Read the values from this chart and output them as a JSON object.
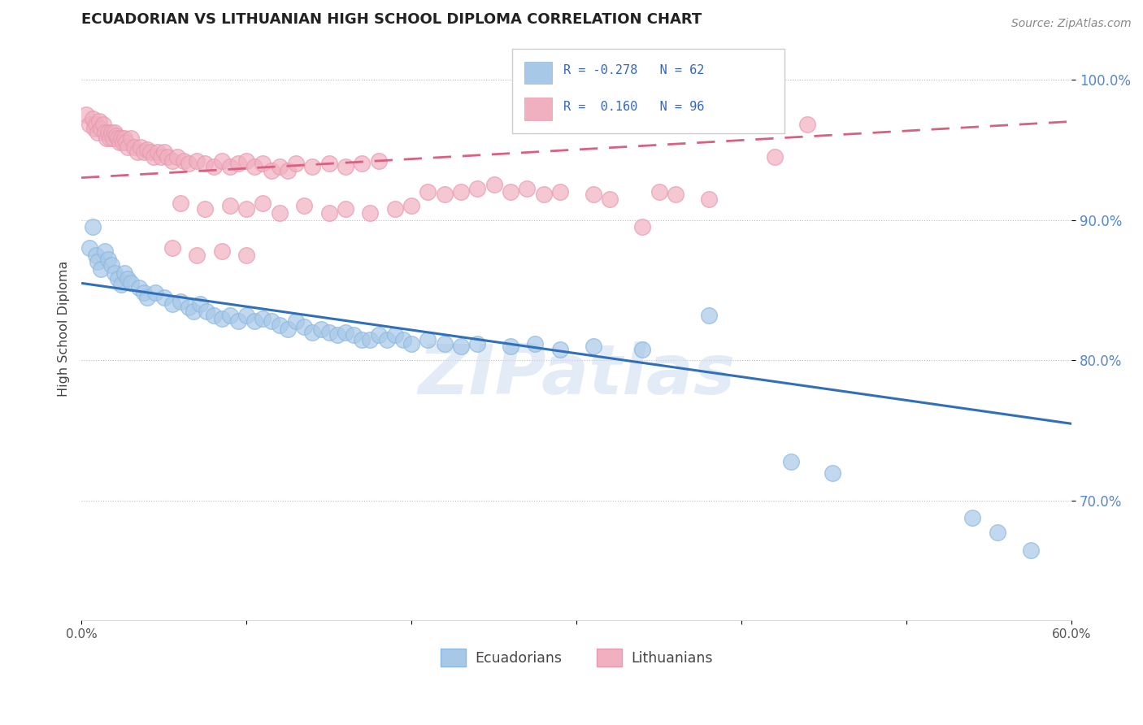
{
  "title": "ECUADORIAN VS LITHUANIAN HIGH SCHOOL DIPLOMA CORRELATION CHART",
  "source": "Source: ZipAtlas.com",
  "ylabel": "High School Diploma",
  "xlim": [
    0.0,
    0.6
  ],
  "ylim": [
    0.615,
    1.03
  ],
  "y_ticks": [
    0.7,
    0.8,
    0.9,
    1.0
  ],
  "y_tick_labels": [
    "70.0%",
    "80.0%",
    "90.0%",
    "100.0%"
  ],
  "blue_color": "#a8c8e8",
  "pink_color": "#f0b0c0",
  "blue_line_color": "#3070b8",
  "pink_line_color": "#d86080",
  "watermark_color": "#d0dff0",
  "watermark_text": "ZIPatlas",
  "blue_scatter": [
    [
      0.005,
      0.88
    ],
    [
      0.007,
      0.895
    ],
    [
      0.009,
      0.875
    ],
    [
      0.01,
      0.87
    ],
    [
      0.012,
      0.865
    ],
    [
      0.014,
      0.878
    ],
    [
      0.016,
      0.872
    ],
    [
      0.018,
      0.868
    ],
    [
      0.02,
      0.862
    ],
    [
      0.022,
      0.858
    ],
    [
      0.024,
      0.854
    ],
    [
      0.026,
      0.862
    ],
    [
      0.028,
      0.858
    ],
    [
      0.03,
      0.855
    ],
    [
      0.035,
      0.852
    ],
    [
      0.038,
      0.848
    ],
    [
      0.04,
      0.845
    ],
    [
      0.045,
      0.848
    ],
    [
      0.05,
      0.845
    ],
    [
      0.055,
      0.84
    ],
    [
      0.06,
      0.842
    ],
    [
      0.065,
      0.838
    ],
    [
      0.068,
      0.835
    ],
    [
      0.072,
      0.84
    ],
    [
      0.076,
      0.835
    ],
    [
      0.08,
      0.832
    ],
    [
      0.085,
      0.83
    ],
    [
      0.09,
      0.832
    ],
    [
      0.095,
      0.828
    ],
    [
      0.1,
      0.832
    ],
    [
      0.105,
      0.828
    ],
    [
      0.11,
      0.83
    ],
    [
      0.115,
      0.828
    ],
    [
      0.12,
      0.825
    ],
    [
      0.125,
      0.822
    ],
    [
      0.13,
      0.828
    ],
    [
      0.135,
      0.824
    ],
    [
      0.14,
      0.82
    ],
    [
      0.145,
      0.822
    ],
    [
      0.15,
      0.82
    ],
    [
      0.155,
      0.818
    ],
    [
      0.16,
      0.82
    ],
    [
      0.165,
      0.818
    ],
    [
      0.17,
      0.815
    ],
    [
      0.175,
      0.815
    ],
    [
      0.18,
      0.818
    ],
    [
      0.185,
      0.815
    ],
    [
      0.19,
      0.818
    ],
    [
      0.195,
      0.815
    ],
    [
      0.2,
      0.812
    ],
    [
      0.21,
      0.815
    ],
    [
      0.22,
      0.812
    ],
    [
      0.23,
      0.81
    ],
    [
      0.24,
      0.812
    ],
    [
      0.26,
      0.81
    ],
    [
      0.275,
      0.812
    ],
    [
      0.29,
      0.808
    ],
    [
      0.31,
      0.81
    ],
    [
      0.34,
      0.808
    ],
    [
      0.38,
      0.832
    ],
    [
      0.43,
      0.728
    ],
    [
      0.455,
      0.72
    ],
    [
      0.54,
      0.688
    ],
    [
      0.555,
      0.678
    ],
    [
      0.575,
      0.665
    ]
  ],
  "pink_scatter": [
    [
      0.003,
      0.975
    ],
    [
      0.005,
      0.968
    ],
    [
      0.007,
      0.972
    ],
    [
      0.008,
      0.965
    ],
    [
      0.009,
      0.968
    ],
    [
      0.01,
      0.962
    ],
    [
      0.011,
      0.97
    ],
    [
      0.012,
      0.965
    ],
    [
      0.013,
      0.968
    ],
    [
      0.014,
      0.962
    ],
    [
      0.015,
      0.958
    ],
    [
      0.016,
      0.962
    ],
    [
      0.017,
      0.958
    ],
    [
      0.018,
      0.962
    ],
    [
      0.019,
      0.958
    ],
    [
      0.02,
      0.962
    ],
    [
      0.021,
      0.96
    ],
    [
      0.022,
      0.958
    ],
    [
      0.023,
      0.955
    ],
    [
      0.024,
      0.958
    ],
    [
      0.025,
      0.955
    ],
    [
      0.026,
      0.958
    ],
    [
      0.027,
      0.955
    ],
    [
      0.028,
      0.952
    ],
    [
      0.03,
      0.958
    ],
    [
      0.032,
      0.952
    ],
    [
      0.034,
      0.948
    ],
    [
      0.036,
      0.952
    ],
    [
      0.038,
      0.948
    ],
    [
      0.04,
      0.95
    ],
    [
      0.042,
      0.948
    ],
    [
      0.044,
      0.945
    ],
    [
      0.046,
      0.948
    ],
    [
      0.048,
      0.945
    ],
    [
      0.05,
      0.948
    ],
    [
      0.052,
      0.945
    ],
    [
      0.055,
      0.942
    ],
    [
      0.058,
      0.945
    ],
    [
      0.062,
      0.942
    ],
    [
      0.065,
      0.94
    ],
    [
      0.07,
      0.942
    ],
    [
      0.075,
      0.94
    ],
    [
      0.08,
      0.938
    ],
    [
      0.085,
      0.942
    ],
    [
      0.09,
      0.938
    ],
    [
      0.095,
      0.94
    ],
    [
      0.1,
      0.942
    ],
    [
      0.105,
      0.938
    ],
    [
      0.11,
      0.94
    ],
    [
      0.115,
      0.935
    ],
    [
      0.12,
      0.938
    ],
    [
      0.125,
      0.935
    ],
    [
      0.13,
      0.94
    ],
    [
      0.14,
      0.938
    ],
    [
      0.15,
      0.94
    ],
    [
      0.16,
      0.938
    ],
    [
      0.17,
      0.94
    ],
    [
      0.18,
      0.942
    ],
    [
      0.06,
      0.912
    ],
    [
      0.075,
      0.908
    ],
    [
      0.09,
      0.91
    ],
    [
      0.1,
      0.908
    ],
    [
      0.11,
      0.912
    ],
    [
      0.12,
      0.905
    ],
    [
      0.135,
      0.91
    ],
    [
      0.15,
      0.905
    ],
    [
      0.16,
      0.908
    ],
    [
      0.175,
      0.905
    ],
    [
      0.19,
      0.908
    ],
    [
      0.2,
      0.91
    ],
    [
      0.21,
      0.92
    ],
    [
      0.22,
      0.918
    ],
    [
      0.23,
      0.92
    ],
    [
      0.24,
      0.922
    ],
    [
      0.25,
      0.925
    ],
    [
      0.26,
      0.92
    ],
    [
      0.27,
      0.922
    ],
    [
      0.28,
      0.918
    ],
    [
      0.29,
      0.92
    ],
    [
      0.31,
      0.918
    ],
    [
      0.32,
      0.915
    ],
    [
      0.35,
      0.92
    ],
    [
      0.36,
      0.918
    ],
    [
      0.38,
      0.915
    ],
    [
      0.055,
      0.88
    ],
    [
      0.07,
      0.875
    ],
    [
      0.085,
      0.878
    ],
    [
      0.1,
      0.875
    ],
    [
      0.34,
      0.895
    ],
    [
      0.42,
      0.945
    ],
    [
      0.44,
      0.968
    ]
  ]
}
